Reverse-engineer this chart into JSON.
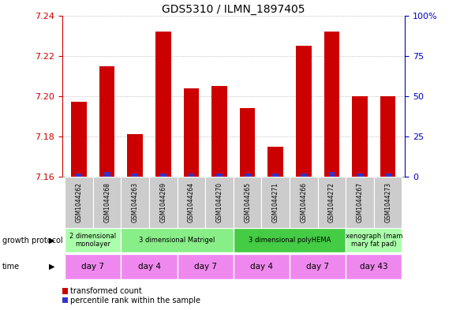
{
  "title": "GDS5310 / ILMN_1897405",
  "samples": [
    "GSM1044262",
    "GSM1044268",
    "GSM1044263",
    "GSM1044269",
    "GSM1044264",
    "GSM1044270",
    "GSM1044265",
    "GSM1044271",
    "GSM1044266",
    "GSM1044272",
    "GSM1044267",
    "GSM1044273"
  ],
  "red_values": [
    7.197,
    7.215,
    7.181,
    7.232,
    7.204,
    7.205,
    7.194,
    7.175,
    7.225,
    7.232,
    7.2,
    7.2
  ],
  "blue_values": [
    2,
    3,
    2,
    2,
    2,
    2,
    2,
    2,
    2,
    3,
    2,
    2
  ],
  "ylim_left": [
    7.16,
    7.24
  ],
  "ylim_right": [
    0,
    100
  ],
  "yticks_left": [
    7.16,
    7.18,
    7.2,
    7.22,
    7.24
  ],
  "yticks_right": [
    0,
    25,
    50,
    75,
    100
  ],
  "ybaseline": 7.16,
  "growth_protocol_groups": [
    {
      "label": "2 dimensional\nmonolayer",
      "start": 0,
      "end": 2,
      "color": "#aaffaa"
    },
    {
      "label": "3 dimensional Matrigel",
      "start": 2,
      "end": 6,
      "color": "#88ee88"
    },
    {
      "label": "3 dimensional polyHEMA",
      "start": 6,
      "end": 10,
      "color": "#44cc44"
    },
    {
      "label": "xenograph (mam\nmary fat pad)",
      "start": 10,
      "end": 12,
      "color": "#aaffaa"
    }
  ],
  "time_groups": [
    {
      "label": "day 7",
      "start": 0,
      "end": 2,
      "color": "#ee88ee"
    },
    {
      "label": "day 4",
      "start": 2,
      "end": 4,
      "color": "#ee88ee"
    },
    {
      "label": "day 7",
      "start": 4,
      "end": 6,
      "color": "#ee88ee"
    },
    {
      "label": "day 4",
      "start": 6,
      "end": 8,
      "color": "#ee88ee"
    },
    {
      "label": "day 7",
      "start": 8,
      "end": 10,
      "color": "#ee88ee"
    },
    {
      "label": "day 43",
      "start": 10,
      "end": 12,
      "color": "#ee88ee"
    }
  ],
  "bar_width": 0.55,
  "blue_bar_width": 0.22,
  "red_color": "#cc0000",
  "blue_color": "#3333cc",
  "left_axis_color": "#cc0000",
  "right_axis_color": "#0000cc",
  "grid_color": "#aaaaaa",
  "sample_bg_color": "#cccccc",
  "legend_items": [
    {
      "label": "transformed count",
      "color": "#cc0000"
    },
    {
      "label": "percentile rank within the sample",
      "color": "#3333cc"
    }
  ]
}
